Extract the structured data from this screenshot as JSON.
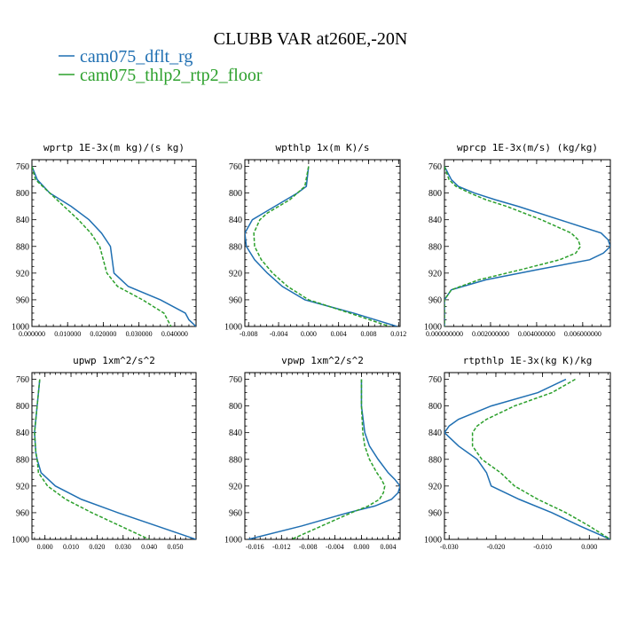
{
  "figure": {
    "title": "CLUBB VAR at260E,-20N"
  },
  "colors": {
    "series1": "#1f6fb2",
    "series2": "#2ca02c",
    "frame": "#000000"
  },
  "legend": [
    {
      "label": "cam075_dflt_rg",
      "color": "#1f6fb2",
      "dash": "solid"
    },
    {
      "label": "cam075_thlp2_rtp2_floor",
      "color": "#2ca02c",
      "dash": "dashed"
    }
  ],
  "chart_data": [
    {
      "type": "line",
      "title": "wprtp  1E-3x(m kg)/(s kg)",
      "ylim": [
        1000,
        750
      ],
      "yticks": [
        760,
        800,
        840,
        880,
        920,
        960,
        1000
      ],
      "xlim": [
        0.0,
        0.046
      ],
      "xticks": [
        0.0,
        0.01,
        0.02,
        0.03,
        0.04
      ],
      "xticklabels": [
        "0.000000",
        "0.010000",
        "0.020000",
        "0.030000",
        "0.040000"
      ],
      "y": [
        760,
        780,
        800,
        820,
        840,
        860,
        880,
        900,
        920,
        940,
        960,
        980,
        990,
        1000
      ],
      "series": [
        {
          "name": "cam075_dflt_rg",
          "values": [
            0.0,
            0.0015,
            0.005,
            0.011,
            0.016,
            0.0195,
            0.022,
            0.0225,
            0.023,
            0.027,
            0.036,
            0.043,
            0.044,
            0.046
          ]
        },
        {
          "name": "cam075_thlp2_rtp2_floor",
          "values": [
            0.0,
            0.001,
            0.005,
            0.009,
            0.013,
            0.0165,
            0.019,
            0.02,
            0.021,
            0.024,
            0.031,
            0.037,
            0.038,
            0.039
          ]
        }
      ]
    },
    {
      "type": "line",
      "title": "wpthlp  1x(m K)/s",
      "ylim": [
        1000,
        750
      ],
      "yticks": [
        760,
        800,
        840,
        880,
        920,
        960,
        1000
      ],
      "xlim": [
        -0.0085,
        0.0122
      ],
      "xticks": [
        -0.008,
        -0.004,
        0.0,
        0.004,
        0.008,
        0.012
      ],
      "xticklabels": [
        "-0.008",
        "-0.004",
        "0.000",
        "0.004",
        "0.008",
        "0.012"
      ],
      "y": [
        760,
        790,
        800,
        810,
        820,
        830,
        840,
        860,
        880,
        900,
        920,
        940,
        960,
        980,
        1000
      ],
      "series": [
        {
          "name": "cam075_dflt_rg",
          "values": [
            0.0,
            -0.0003,
            -0.0015,
            -0.003,
            -0.0045,
            -0.006,
            -0.0075,
            -0.0085,
            -0.0083,
            -0.0072,
            -0.0055,
            -0.0035,
            -0.0005,
            0.006,
            0.0118
          ]
        },
        {
          "name": "cam075_thlp2_rtp2_floor",
          "values": [
            0.0,
            -0.0005,
            -0.0015,
            -0.0025,
            -0.004,
            -0.0055,
            -0.0065,
            -0.0073,
            -0.0072,
            -0.0063,
            -0.0048,
            -0.0028,
            0.0,
            0.0055,
            0.0108
          ]
        }
      ]
    },
    {
      "type": "line",
      "title": "wprcp  1E-3x(m/s) (kg/kg)",
      "ylim": [
        1000,
        750
      ],
      "yticks": [
        760,
        800,
        840,
        880,
        920,
        960,
        1000
      ],
      "xlim": [
        0.0,
        0.0072
      ],
      "xticks": [
        0.0,
        0.002,
        0.004,
        0.006
      ],
      "xticklabels": [
        "0.000000000",
        "0.002000000",
        "0.004000000",
        "0.006000000"
      ],
      "y": [
        760,
        780,
        790,
        800,
        810,
        820,
        840,
        860,
        870,
        880,
        890,
        900,
        915,
        930,
        945,
        960,
        1000
      ],
      "series": [
        {
          "name": "cam075_dflt_rg",
          "values": [
            0.0,
            0.0003,
            0.0006,
            0.0013,
            0.0022,
            0.0032,
            0.005,
            0.0068,
            0.0071,
            0.0072,
            0.0069,
            0.0063,
            0.004,
            0.0018,
            0.0003,
            0.0,
            0.0
          ]
        },
        {
          "name": "cam075_thlp2_rtp2_floor",
          "values": [
            0.0,
            0.0002,
            0.0005,
            0.0011,
            0.0018,
            0.0027,
            0.0042,
            0.0055,
            0.0058,
            0.0059,
            0.0057,
            0.005,
            0.0033,
            0.0015,
            0.0003,
            0.0,
            0.0
          ]
        }
      ]
    },
    {
      "type": "line",
      "title": "upwp   1xm^2/s^2",
      "ylim": [
        1000,
        750
      ],
      "yticks": [
        760,
        800,
        840,
        880,
        920,
        960,
        1000
      ],
      "xlim": [
        -0.005,
        0.058
      ],
      "xticks": [
        0.0,
        0.01,
        0.02,
        0.03,
        0.04,
        0.05
      ],
      "xticklabels": [
        "0.000",
        "0.010",
        "0.020",
        "0.030",
        "0.040",
        "0.050"
      ],
      "y": [
        760,
        800,
        840,
        870,
        880,
        900,
        920,
        940,
        960,
        980,
        1000
      ],
      "series": [
        {
          "name": "cam075_dflt_rg",
          "values": [
            -0.002,
            -0.003,
            -0.004,
            -0.0035,
            -0.003,
            -0.0015,
            0.004,
            0.014,
            0.028,
            0.043,
            0.058
          ]
        },
        {
          "name": "cam075_thlp2_rtp2_floor",
          "values": [
            -0.002,
            -0.003,
            -0.004,
            -0.0035,
            -0.003,
            -0.0025,
            0.001,
            0.008,
            0.018,
            0.029,
            0.04
          ]
        }
      ]
    },
    {
      "type": "line",
      "title": "vpwp   1xm^2/s^2",
      "ylim": [
        1000,
        750
      ],
      "yticks": [
        760,
        800,
        840,
        880,
        920,
        960,
        1000
      ],
      "xlim": [
        -0.0175,
        0.0058
      ],
      "xticks": [
        -0.016,
        -0.012,
        -0.008,
        -0.004,
        0.0,
        0.004
      ],
      "xticklabels": [
        "-0.016",
        "-0.012",
        "-0.008",
        "-0.004",
        "0.000",
        "0.004"
      ],
      "y": [
        760,
        800,
        840,
        860,
        880,
        900,
        910,
        920,
        930,
        940,
        950,
        960,
        980,
        1000
      ],
      "series": [
        {
          "name": "cam075_dflt_rg",
          "values": [
            0.0,
            0.0,
            0.0005,
            0.0012,
            0.0025,
            0.004,
            0.005,
            0.0058,
            0.0055,
            0.0045,
            0.002,
            -0.002,
            -0.009,
            -0.017
          ]
        },
        {
          "name": "cam075_thlp2_rtp2_floor",
          "values": [
            0.0,
            0.0,
            0.0002,
            0.0005,
            0.0012,
            0.0023,
            0.003,
            0.0035,
            0.0033,
            0.0027,
            0.001,
            -0.0015,
            -0.006,
            -0.0105
          ]
        }
      ]
    },
    {
      "type": "line",
      "title": "rtpthlp  1E-3x(kg K)/kg",
      "ylim": [
        1000,
        750
      ],
      "yticks": [
        760,
        800,
        840,
        880,
        920,
        960,
        1000
      ],
      "xlim": [
        -0.031,
        0.0045
      ],
      "xticks": [
        -0.03,
        -0.02,
        -0.01,
        0.0
      ],
      "xticklabels": [
        "-0.030",
        "-0.020",
        "-0.010",
        "0.000"
      ],
      "y": [
        760,
        780,
        800,
        820,
        830,
        840,
        860,
        880,
        900,
        920,
        940,
        960,
        980,
        1000
      ],
      "series": [
        {
          "name": "cam075_dflt_rg",
          "values": [
            -0.005,
            -0.011,
            -0.021,
            -0.028,
            -0.03,
            -0.031,
            -0.028,
            -0.024,
            -0.022,
            -0.021,
            -0.015,
            -0.008,
            -0.002,
            0.0045
          ]
        },
        {
          "name": "cam075_thlp2_rtp2_floor",
          "values": [
            -0.003,
            -0.008,
            -0.016,
            -0.022,
            -0.024,
            -0.025,
            -0.025,
            -0.023,
            -0.019,
            -0.016,
            -0.011,
            -0.005,
            0.0,
            0.0045
          ]
        }
      ]
    }
  ]
}
